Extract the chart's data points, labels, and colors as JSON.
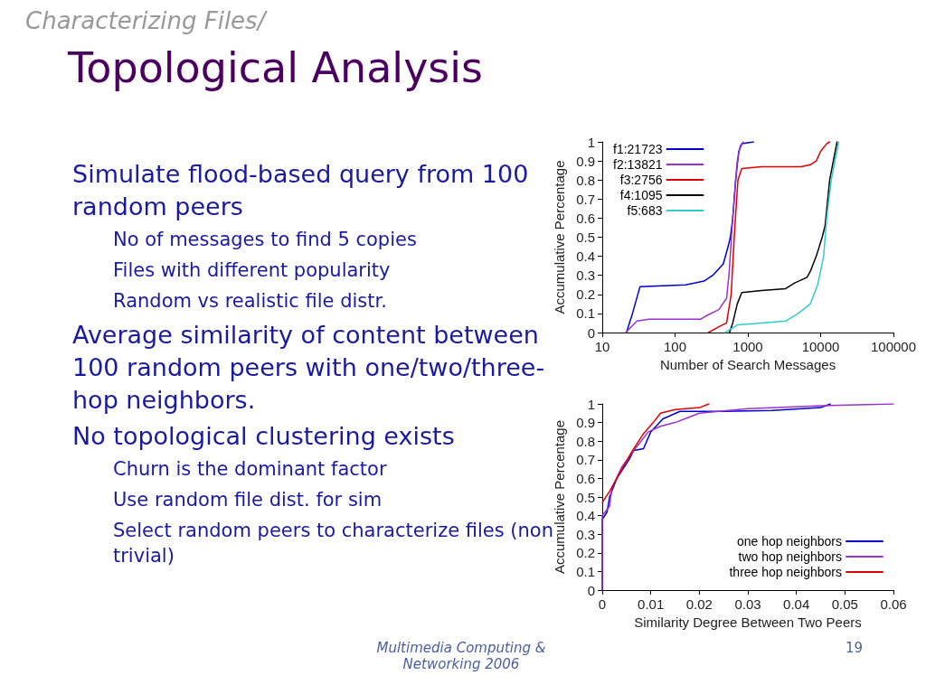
{
  "chart_data": [
    {
      "type": "other",
      "title": "Characterizing Files/",
      "subtitle": "Topological Analysis",
      "annotations": [
        "Simulate flood-based query from 100 random peers",
        "No of messages to find 5 copies",
        "Files with different popularity",
        "Random vs realistic file distr.",
        "Average similarity of content between 100 random peers with one/two/three-hop neighbors.",
        "No topological clustering exists",
        "Churn is the dominant factor",
        "Use random file dist. for sim",
        "Select random peers to characterize files (non trivial)",
        "Multimedia Computing & Networking 2006",
        "19"
      ]
    },
    {
      "type": "line",
      "xlabel": "Number of Search Messages",
      "ylabel": "Accumulative Percentage",
      "log": "x",
      "xlim": [
        10,
        100000
      ],
      "xticks": [
        10,
        100,
        1000,
        10000,
        100000
      ],
      "ylim": [
        0,
        1
      ],
      "yticks": [
        0,
        0.1,
        0.2,
        0.3,
        0.4,
        0.5,
        0.6,
        0.7,
        0.8,
        0.9,
        1
      ],
      "legend": "top left",
      "grid": false,
      "marker": "none",
      "line_style": "solid",
      "series": [
        {
          "name": "f1:21723",
          "color": "#0000cc",
          "x": [
            21.5,
            26,
            33,
            140,
            250,
            330,
            460,
            535,
            575,
            620,
            680,
            750,
            825,
            1200
          ],
          "values": [
            0,
            0.1,
            0.24,
            0.25,
            0.27,
            0.3,
            0.36,
            0.45,
            0.5,
            0.6,
            0.8,
            0.95,
            0.99,
            1
          ]
        },
        {
          "name": "f2:13821",
          "color": "#9933cc",
          "x": [
            21,
            30,
            44,
            225,
            275,
            400,
            510,
            550,
            620,
            715,
            790,
            865
          ],
          "values": [
            0,
            0.06,
            0.07,
            0.07,
            0.09,
            0.12,
            0.18,
            0.3,
            0.6,
            0.9,
            0.98,
            1
          ]
        },
        {
          "name": "f3:2756",
          "color": "#dd0000",
          "x": [
            287,
            400,
            510,
            590,
            650,
            730,
            825,
            1540,
            5400,
            7200,
            8700,
            10000,
            12100,
            13300
          ],
          "values": [
            0,
            0.03,
            0.05,
            0.2,
            0.5,
            0.8,
            0.86,
            0.87,
            0.87,
            0.88,
            0.9,
            0.95,
            0.99,
            1
          ]
        },
        {
          "name": "f4:1095",
          "color": "#000000",
          "x": [
            560,
            620,
            715,
            825,
            1540,
            3300,
            4400,
            6500,
            7200,
            8700,
            10500,
            11500,
            13300,
            16800
          ],
          "values": [
            0,
            0.05,
            0.15,
            0.21,
            0.22,
            0.23,
            0.26,
            0.29,
            0.32,
            0.4,
            0.5,
            0.56,
            0.8,
            1
          ]
        },
        {
          "name": "f5:683",
          "color": "#33cccc",
          "x": [
            490,
            715,
            1540,
            3300,
            4900,
            7200,
            9100,
            11000,
            12100,
            14000,
            17700
          ],
          "values": [
            0,
            0.04,
            0.05,
            0.06,
            0.1,
            0.15,
            0.25,
            0.4,
            0.6,
            0.8,
            1
          ]
        }
      ]
    },
    {
      "type": "line",
      "xlabel": "Similarity Degree Between Two Peers",
      "ylabel": "Accumulative Percentage",
      "xlim": [
        0,
        0.06
      ],
      "xticks": [
        0,
        0.01,
        0.02,
        0.03,
        0.04,
        0.05,
        0.06
      ],
      "ylim": [
        0,
        1
      ],
      "yticks": [
        0,
        0.1,
        0.2,
        0.3,
        0.4,
        0.5,
        0.6,
        0.7,
        0.8,
        0.9,
        1
      ],
      "legend": "bottom right",
      "grid": false,
      "marker": "none",
      "line_style": "solid",
      "series": [
        {
          "name": "one hop neighbors",
          "color": "#0000cc",
          "x": [
            0,
            0,
            0.001,
            0.0015,
            0.003,
            0.0055,
            0.0065,
            0.0085,
            0.01,
            0.0125,
            0.016,
            0.025,
            0.035,
            0.045,
            0.047
          ],
          "values": [
            0,
            0.38,
            0.42,
            0.5,
            0.6,
            0.7,
            0.75,
            0.76,
            0.85,
            0.92,
            0.96,
            0.96,
            0.965,
            0.98,
            1
          ]
        },
        {
          "name": "two hop neighbors",
          "color": "#9933cc",
          "x": [
            0,
            0,
            0.0015,
            0.002,
            0.004,
            0.0065,
            0.0095,
            0.012,
            0.015,
            0.02,
            0.03,
            0.045,
            0.06
          ],
          "values": [
            0,
            0.4,
            0.45,
            0.55,
            0.66,
            0.75,
            0.85,
            0.88,
            0.9,
            0.95,
            0.975,
            0.99,
            1
          ]
        },
        {
          "name": "three hop neighbors",
          "color": "#dd0000",
          "x": [
            0,
            0.0015,
            0.003,
            0.006,
            0.0085,
            0.0105,
            0.012,
            0.015,
            0.02,
            0.022
          ],
          "values": [
            0.47,
            0.53,
            0.6,
            0.74,
            0.84,
            0.9,
            0.95,
            0.97,
            0.98,
            1
          ]
        }
      ]
    }
  ]
}
